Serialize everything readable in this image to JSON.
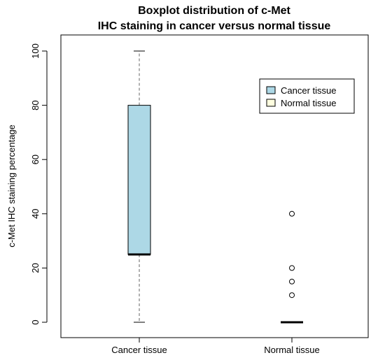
{
  "chart_data": {
    "type": "boxplot",
    "title": [
      "Boxplot distribution of c-Met",
      "IHC staining in cancer versus normal tissue"
    ],
    "xlabel": "",
    "ylabel": "c-Met IHC staining  percentage",
    "ylim": [
      0,
      100
    ],
    "yticks": [
      0,
      20,
      40,
      60,
      80,
      100
    ],
    "categories": [
      "Cancer tissue",
      "Normal tissue"
    ],
    "boxes": [
      {
        "name": "Cancer tissue",
        "min": 0,
        "q1": 25,
        "median": 25,
        "q3": 80,
        "max": 100,
        "outliers": [],
        "color": "#add8e6"
      },
      {
        "name": "Normal tissue",
        "min": 0,
        "q1": 0,
        "median": 0,
        "q3": 0,
        "max": 0,
        "outliers": [
          10,
          15,
          20,
          40
        ],
        "color": "#ffffe0"
      }
    ],
    "legend": {
      "position": "top-right",
      "entries": [
        {
          "label": "Cancer tissue",
          "color": "#add8e6"
        },
        {
          "label": "Normal tissue",
          "color": "#ffffe0"
        }
      ]
    },
    "grid": false
  }
}
